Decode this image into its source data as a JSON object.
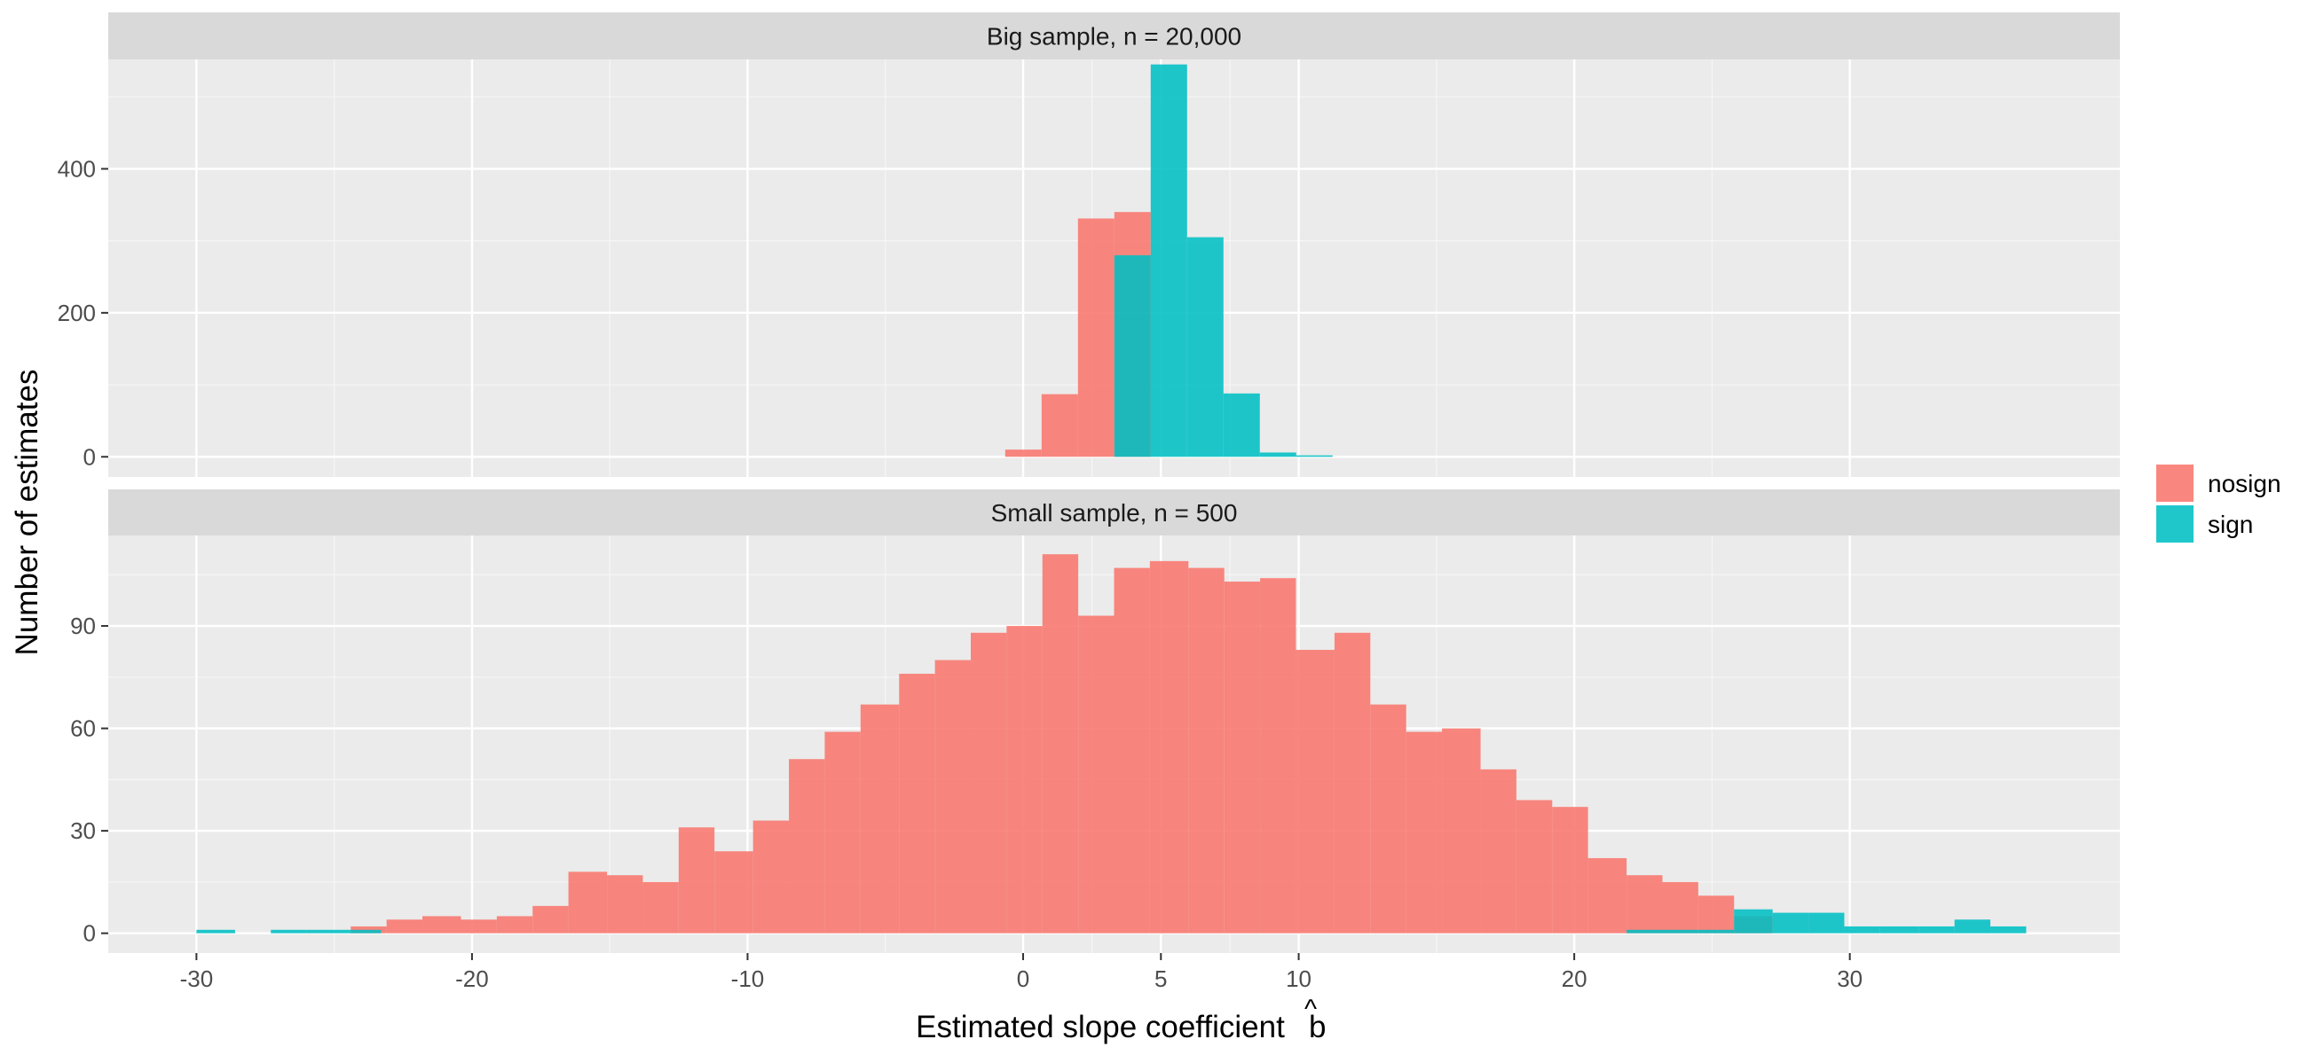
{
  "chart_data": {
    "type": "bar",
    "subtype": "histogram",
    "xlabel": "Estimated slope coefficient",
    "xlabel_hat": "b",
    "ylabel": "Number of estimates",
    "xlim": [
      -33.2,
      39.8
    ],
    "x_ticks": [
      -30,
      -20,
      -10,
      0,
      5,
      10,
      20,
      30
    ],
    "x_tick_labels": [
      "-30",
      "-20",
      "-10",
      "0",
      "5",
      "10",
      "20",
      "30"
    ],
    "binwidth": 1.32,
    "grid": true,
    "legend": {
      "position": "right",
      "entries": [
        {
          "label": "nosign",
          "color": "#F8766D"
        },
        {
          "label": "sign",
          "color": "#00BFC4"
        }
      ]
    },
    "panels": [
      {
        "strip": "Big sample, n = 20,000",
        "ylim": [
          -28,
          552
        ],
        "y_ticks": [
          0,
          200,
          400
        ],
        "series": [
          {
            "name": "nosign",
            "color": "#F8766D",
            "bins": [
              {
                "x0": -0.65,
                "x1": 0.67,
                "count": 10
              },
              {
                "x0": 0.67,
                "x1": 1.99,
                "count": 87
              },
              {
                "x0": 1.99,
                "x1": 3.31,
                "count": 331
              },
              {
                "x0": 3.31,
                "x1": 4.63,
                "count": 340
              }
            ]
          },
          {
            "name": "sign",
            "color": "#00BFC4",
            "bins": [
              {
                "x0": 3.31,
                "x1": 4.63,
                "count": 280
              },
              {
                "x0": 4.63,
                "x1": 5.95,
                "count": 545
              },
              {
                "x0": 5.95,
                "x1": 7.27,
                "count": 305
              },
              {
                "x0": 7.27,
                "x1": 8.59,
                "count": 88
              },
              {
                "x0": 8.59,
                "x1": 9.91,
                "count": 6
              },
              {
                "x0": 9.91,
                "x1": 11.23,
                "count": 2
              }
            ]
          }
        ]
      },
      {
        "strip": "Small sample, n = 500",
        "ylim": [
          -5.8,
          116.5
        ],
        "y_ticks": [
          0,
          30,
          60,
          90
        ],
        "series": [
          {
            "name": "nosign",
            "color": "#F8766D",
            "bins": [
              {
                "x0": -24.4,
                "x1": -23.1,
                "count": 2
              },
              {
                "x0": -23.1,
                "x1": -21.8,
                "count": 4
              },
              {
                "x0": -21.8,
                "x1": -20.4,
                "count": 5
              },
              {
                "x0": -20.4,
                "x1": -19.1,
                "count": 4
              },
              {
                "x0": -19.1,
                "x1": -17.8,
                "count": 5
              },
              {
                "x0": -17.8,
                "x1": -16.5,
                "count": 8
              },
              {
                "x0": -16.5,
                "x1": -15.1,
                "count": 18
              },
              {
                "x0": -15.1,
                "x1": -13.8,
                "count": 17
              },
              {
                "x0": -13.8,
                "x1": -12.5,
                "count": 15
              },
              {
                "x0": -12.5,
                "x1": -11.2,
                "count": 31
              },
              {
                "x0": -11.2,
                "x1": -9.8,
                "count": 24
              },
              {
                "x0": -9.8,
                "x1": -8.5,
                "count": 33
              },
              {
                "x0": -8.5,
                "x1": -7.2,
                "count": 51
              },
              {
                "x0": -7.2,
                "x1": -5.9,
                "count": 59
              },
              {
                "x0": -5.9,
                "x1": -4.5,
                "count": 67
              },
              {
                "x0": -4.5,
                "x1": -3.2,
                "count": 76
              },
              {
                "x0": -3.2,
                "x1": -1.9,
                "count": 80
              },
              {
                "x0": -1.9,
                "x1": -0.6,
                "count": 88
              },
              {
                "x0": -0.6,
                "x1": 0.7,
                "count": 90
              },
              {
                "x0": 0.7,
                "x1": 2.0,
                "count": 111
              },
              {
                "x0": 2.0,
                "x1": 3.3,
                "count": 93
              },
              {
                "x0": 3.3,
                "x1": 4.6,
                "count": 107
              },
              {
                "x0": 4.6,
                "x1": 6.0,
                "count": 109
              },
              {
                "x0": 6.0,
                "x1": 7.3,
                "count": 107
              },
              {
                "x0": 7.3,
                "x1": 8.6,
                "count": 103
              },
              {
                "x0": 8.6,
                "x1": 9.9,
                "count": 104
              },
              {
                "x0": 9.9,
                "x1": 11.3,
                "count": 83
              },
              {
                "x0": 11.3,
                "x1": 12.6,
                "count": 88
              },
              {
                "x0": 12.6,
                "x1": 13.9,
                "count": 67
              },
              {
                "x0": 13.9,
                "x1": 15.2,
                "count": 59
              },
              {
                "x0": 15.2,
                "x1": 16.6,
                "count": 60
              },
              {
                "x0": 16.6,
                "x1": 17.9,
                "count": 48
              },
              {
                "x0": 17.9,
                "x1": 19.2,
                "count": 39
              },
              {
                "x0": 19.2,
                "x1": 20.5,
                "count": 37
              },
              {
                "x0": 20.5,
                "x1": 21.9,
                "count": 22
              },
              {
                "x0": 21.9,
                "x1": 23.2,
                "count": 17
              },
              {
                "x0": 23.2,
                "x1": 24.5,
                "count": 15
              },
              {
                "x0": 24.5,
                "x1": 25.8,
                "count": 11
              },
              {
                "x0": 25.8,
                "x1": 27.2,
                "count": 5
              }
            ]
          },
          {
            "name": "sign",
            "color": "#00BFC4",
            "bins": [
              {
                "x0": -30.0,
                "x1": -28.6,
                "count": 1
              },
              {
                "x0": -27.3,
                "x1": -26.0,
                "count": 1
              },
              {
                "x0": -26.0,
                "x1": -24.7,
                "count": 1
              },
              {
                "x0": -24.7,
                "x1": -23.3,
                "count": 1
              },
              {
                "x0": 21.9,
                "x1": 23.2,
                "count": 1
              },
              {
                "x0": 23.2,
                "x1": 24.5,
                "count": 1
              },
              {
                "x0": 24.5,
                "x1": 25.8,
                "count": 1
              },
              {
                "x0": 25.8,
                "x1": 27.2,
                "count": 7
              },
              {
                "x0": 27.2,
                "x1": 28.5,
                "count": 6
              },
              {
                "x0": 28.5,
                "x1": 29.8,
                "count": 6
              },
              {
                "x0": 29.8,
                "x1": 31.1,
                "count": 2
              },
              {
                "x0": 31.1,
                "x1": 32.5,
                "count": 2
              },
              {
                "x0": 32.5,
                "x1": 33.8,
                "count": 2
              },
              {
                "x0": 33.8,
                "x1": 35.1,
                "count": 4
              },
              {
                "x0": 35.1,
                "x1": 36.4,
                "count": 2
              }
            ]
          }
        ]
      }
    ]
  }
}
